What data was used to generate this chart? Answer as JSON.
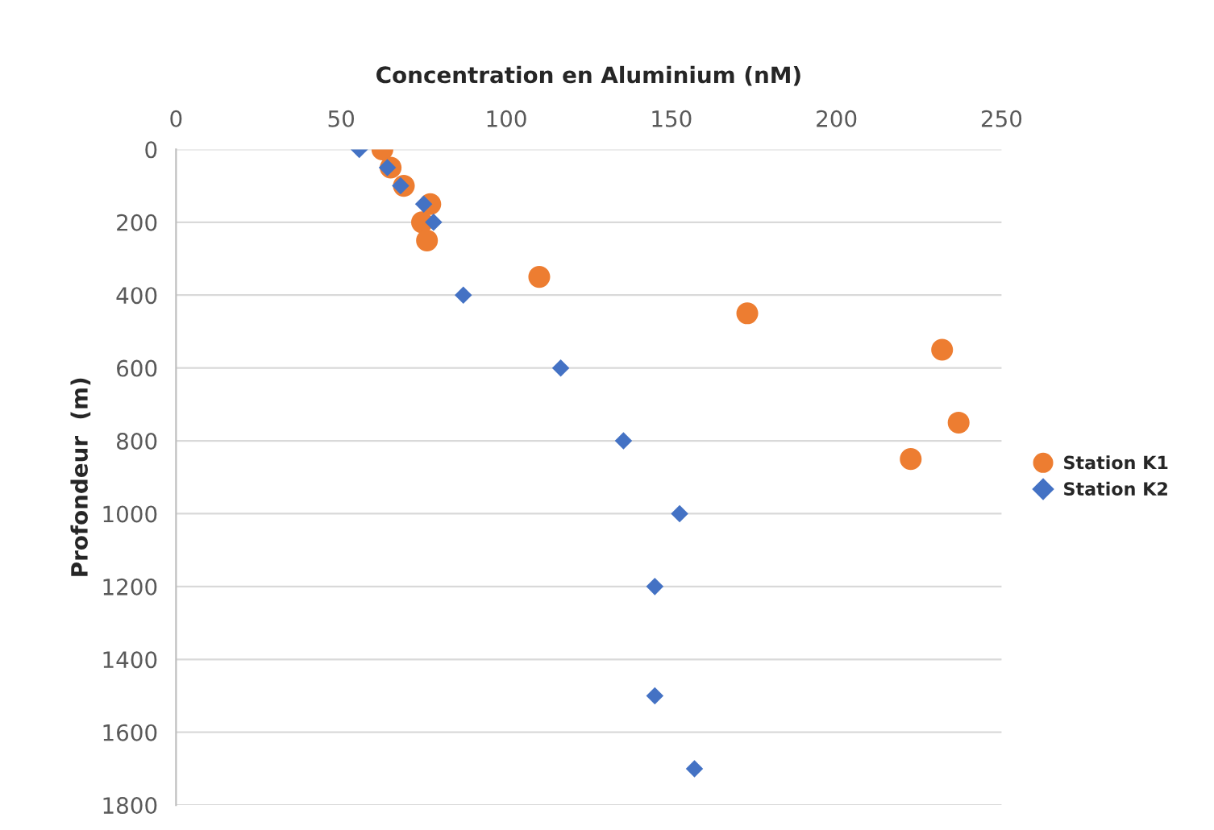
{
  "chart_data": {
    "type": "scatter",
    "xlabel": "Concentration en Aluminium (nM)",
    "ylabel": "Profondeur  (m)",
    "xlim": [
      0,
      250
    ],
    "xticks": [
      0,
      50,
      100,
      150,
      200,
      250
    ],
    "ylim": [
      1800,
      0
    ],
    "yticks": [
      0,
      200,
      400,
      600,
      800,
      1000,
      1200,
      1400,
      1600,
      1800
    ],
    "grid": "y",
    "legend": "right",
    "series": [
      {
        "name": "Station K1",
        "color": "#ed7d31",
        "marker": "circle",
        "x": [
          62.5,
          65,
          69,
          77,
          74.5,
          76,
          110,
          173,
          232,
          237,
          222.5
        ],
        "values": [
          0,
          50,
          100,
          150,
          200,
          250,
          350,
          450,
          550,
          750,
          850
        ]
      },
      {
        "name": "Station K2",
        "color": "#4472c4",
        "marker": "diamond",
        "x": [
          55.5,
          64,
          68,
          75,
          78,
          87,
          116.5,
          135.5,
          152.5,
          145,
          145,
          157
        ],
        "values": [
          0,
          50,
          100,
          150,
          200,
          400,
          600,
          800,
          1000,
          1200,
          1500,
          1700
        ]
      }
    ]
  }
}
